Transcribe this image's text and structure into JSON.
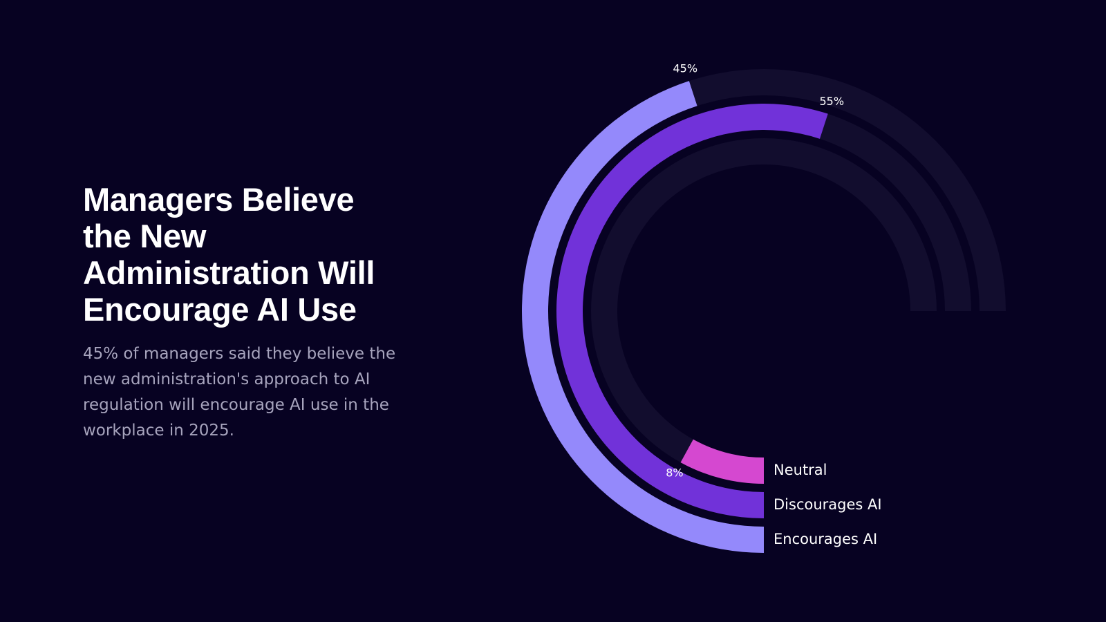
{
  "headline": "Managers Believe the New Administration Will Encourage AI Use",
  "body": "45% of managers said they believe the new administration's approach to AI regulation will encourage AI use in the workplace in 2025.",
  "colors": {
    "background": "#070222",
    "track": "#120d2e",
    "encourages": "#9489fb",
    "discourages": "#7132d9",
    "neutral": "#d548d0"
  },
  "chart_data": {
    "type": "radial-bar",
    "max_percent": 75,
    "series": [
      {
        "name": "Encourages AI",
        "value": 45,
        "label": "45%",
        "color": "#9489fb"
      },
      {
        "name": "Discourages AI",
        "value": 55,
        "label": "55%",
        "color": "#7132d9"
      },
      {
        "name": "Neutral",
        "value": 8,
        "label": "8%",
        "color": "#d548d0"
      }
    ]
  }
}
